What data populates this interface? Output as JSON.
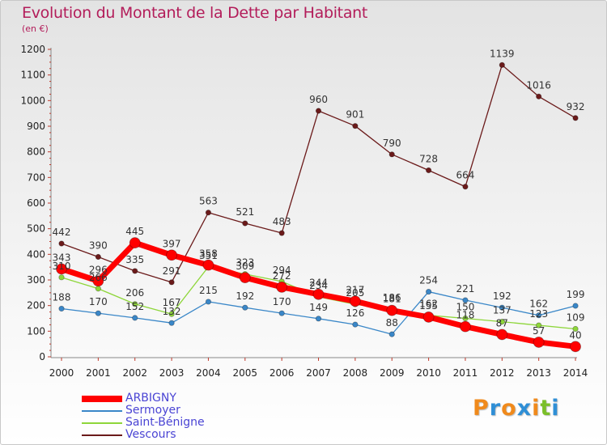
{
  "header": {
    "title": "Evolution du Montant de la Dette par Habitant",
    "unit": "(en €)"
  },
  "brand": {
    "text": "Proxiti",
    "letters": [
      "P",
      "r",
      "o",
      "x",
      "i",
      "t",
      "i"
    ],
    "colors": [
      "#f08a1c",
      "#2f8fd6",
      "#f08a1c",
      "#2f8fd6",
      "#f08a1c",
      "#7bbf2a",
      "#2f8fd6"
    ]
  },
  "chart_data": {
    "type": "line",
    "title": "Evolution du Montant de la Dette par Habitant",
    "subtitle": "(en €)",
    "xlabel": "",
    "ylabel": "",
    "x": [
      "2000",
      "2001",
      "2002",
      "2003",
      "2004",
      "2005",
      "2006",
      "2007",
      "2008",
      "2009",
      "2010",
      "2011",
      "2012",
      "2013",
      "2014"
    ],
    "ylim": [
      0,
      1200
    ],
    "yticks": [
      0,
      100,
      200,
      300,
      400,
      500,
      600,
      700,
      800,
      900,
      1000,
      1100,
      1200
    ],
    "grid": false,
    "legend_position": "bottom-left",
    "series": [
      {
        "name": "ARBIGNY",
        "color": "#ff0000",
        "values": [
          343,
          296,
          445,
          397,
          358,
          309,
          272,
          244,
          217,
          181,
          155,
          118,
          87,
          57,
          40
        ]
      },
      {
        "name": "Sermoyer",
        "color": "#3a87c8",
        "values": [
          188,
          170,
          152,
          132,
          215,
          192,
          170,
          149,
          126,
          88,
          254,
          221,
          192,
          162,
          199
        ]
      },
      {
        "name": "Saint-Bénigne",
        "color": "#8ed63a",
        "values": [
          310,
          266,
          206,
          167,
          351,
          323,
          294,
          234,
          205,
          186,
          162,
          150,
          137,
          123,
          109
        ]
      },
      {
        "name": "Vescours",
        "color": "#6b1a1a",
        "values": [
          442,
          390,
          335,
          291,
          563,
          521,
          483,
          960,
          901,
          790,
          728,
          664,
          1139,
          1016,
          932
        ]
      }
    ]
  }
}
